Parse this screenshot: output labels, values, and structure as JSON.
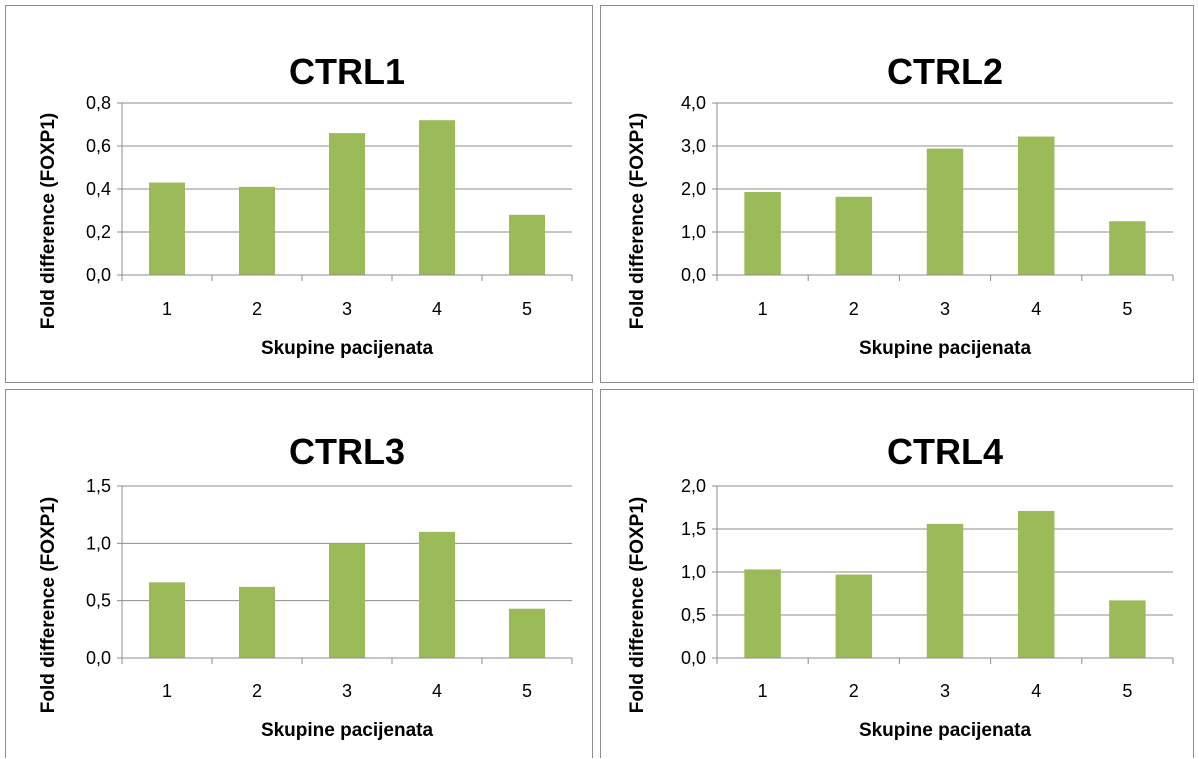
{
  "chart_data": [
    {
      "type": "bar",
      "title": "CTRL1",
      "xlabel": "Skupine pacijenata",
      "ylabel": "Fold difference (FOXP1)",
      "categories": [
        "1",
        "2",
        "3",
        "4",
        "5"
      ],
      "values": [
        0.43,
        0.41,
        0.66,
        0.72,
        0.28
      ],
      "yticks": [
        "0,0",
        "0,2",
        "0,4",
        "0,6",
        "0,8"
      ],
      "ylim": [
        0,
        0.8
      ],
      "grid": true,
      "legend": "none",
      "bar_color": "#9bbb59"
    },
    {
      "type": "bar",
      "title": "CTRL2",
      "xlabel": "Skupine pacijenata",
      "ylabel": "Fold difference (FOXP1)",
      "categories": [
        "1",
        "2",
        "3",
        "4",
        "5"
      ],
      "values": [
        1.93,
        1.82,
        2.94,
        3.22,
        1.25
      ],
      "yticks": [
        "0,0",
        "1,0",
        "2,0",
        "3,0",
        "4,0"
      ],
      "ylim": [
        0,
        4.0
      ],
      "grid": true,
      "legend": "none",
      "bar_color": "#9bbb59"
    },
    {
      "type": "bar",
      "title": "CTRL3",
      "xlabel": "Skupine pacijenata",
      "ylabel": "Fold difference (FOXP1)",
      "categories": [
        "1",
        "2",
        "3",
        "4",
        "5"
      ],
      "values": [
        0.66,
        0.62,
        1.0,
        1.1,
        0.43
      ],
      "yticks": [
        "0,0",
        "0,5",
        "1,0",
        "1,5"
      ],
      "ylim": [
        0,
        1.5
      ],
      "grid": true,
      "legend": "none",
      "bar_color": "#9bbb59"
    },
    {
      "type": "bar",
      "title": "CTRL4",
      "xlabel": "Skupine pacijenata",
      "ylabel": "Fold difference (FOXP1)",
      "categories": [
        "1",
        "2",
        "3",
        "4",
        "5"
      ],
      "values": [
        1.03,
        0.97,
        1.56,
        1.71,
        0.67
      ],
      "yticks": [
        "0,0",
        "0,5",
        "1,0",
        "1,5",
        "2,0"
      ],
      "ylim": [
        0,
        2.0
      ],
      "grid": true,
      "legend": "none",
      "bar_color": "#9bbb59"
    }
  ]
}
